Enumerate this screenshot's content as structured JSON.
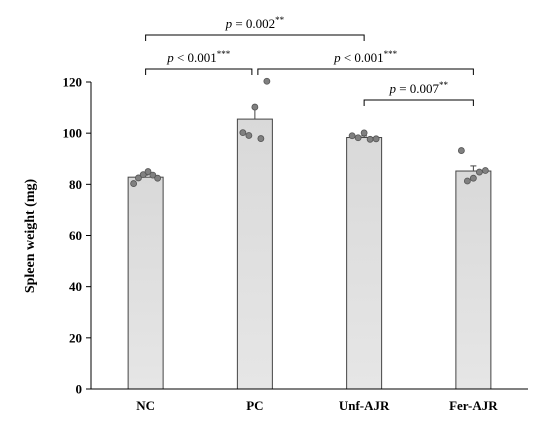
{
  "chart_data": {
    "type": "bar",
    "categories": [
      "NC",
      "PC",
      "Unf-AJR",
      "Fer-AJR"
    ],
    "values": [
      82.8,
      105.5,
      98.3,
      85.2
    ],
    "error_upper": [
      0.8,
      4.8,
      0.6,
      2.0
    ],
    "points": [
      [
        80.3,
        82.5,
        83.8,
        85.0,
        83.6,
        82.4
      ],
      [
        100.2,
        99.1,
        110.2,
        97.9,
        120.3
      ],
      [
        99.0,
        98.2,
        100.1,
        97.6,
        97.8
      ],
      [
        93.2,
        81.3,
        82.4,
        84.8,
        85.4
      ]
    ],
    "ylabel": "Spleen weight (mg)",
    "xlabel": "",
    "title": "",
    "ylim": [
      0,
      120
    ],
    "yticks": [
      0,
      20,
      40,
      60,
      80,
      100,
      120
    ],
    "grid": false,
    "bar_color": "#d9d9d9",
    "point_color": "#808080",
    "annotations": [
      {
        "from": 0,
        "to": 2,
        "tier": "top",
        "prefix": "p",
        "text": " = 0.002",
        "stars": "**"
      },
      {
        "from": 0,
        "to": 1,
        "tier": "mid",
        "prefix": "p",
        "text": " < 0.001",
        "stars": "***"
      },
      {
        "from": 1,
        "to": 3,
        "tier": "mid",
        "prefix": "p",
        "text": " < 0.001",
        "stars": "***"
      },
      {
        "from": 2,
        "to": 3,
        "tier": "low",
        "prefix": "p",
        "text": " = 0.007",
        "stars": "**"
      }
    ]
  }
}
